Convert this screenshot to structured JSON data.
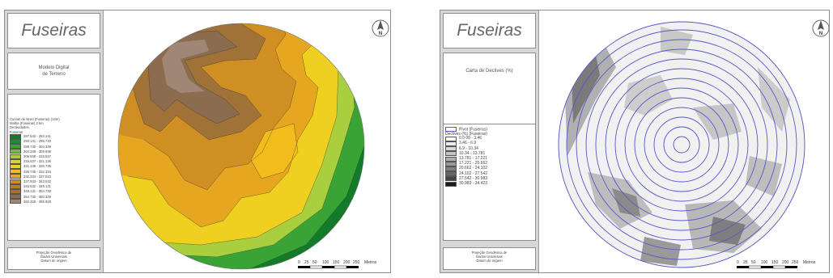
{
  "left_map": {
    "title": "Fuseiras",
    "subtitle": [
      "Modelo Digital",
      "de Terreno"
    ],
    "legend_header": [
      "Curvas de Nivel (Fuseiras) (10m)",
      "Malha (Fuseiras) 2 km",
      "Declividades",
      "Fuseiras"
    ],
    "legend": [
      {
        "label": "287.542 - 293.141",
        "color": "#127a28"
      },
      {
        "label": "293.141 - 298.740",
        "color": "#1e8e2e"
      },
      {
        "label": "298.740 - 304.339",
        "color": "#3aa336"
      },
      {
        "label": "304.339 - 309.938",
        "color": "#6fbb3a"
      },
      {
        "label": "309.938 - 315.537",
        "color": "#a9cf3f"
      },
      {
        "label": "315.537 - 321.136",
        "color": "#dad037"
      },
      {
        "label": "321.136 - 326.735",
        "color": "#efd020"
      },
      {
        "label": "326.735 - 332.334",
        "color": "#f2bd1c"
      },
      {
        "label": "332.334 - 337.933",
        "color": "#e7a61f"
      },
      {
        "label": "337.933 - 343.532",
        "color": "#cf8f22"
      },
      {
        "label": "343.532 - 349.131",
        "color": "#b77d2c"
      },
      {
        "label": "349.131 - 354.730",
        "color": "#a07238"
      },
      {
        "label": "354.730 - 360.329",
        "color": "#8c6c4e"
      },
      {
        "label": "360.329 - 365.928",
        "color": "#a08775"
      }
    ],
    "footer": [
      "Projeção Geodésica de",
      "Dados Universais",
      "Datum de origem"
    ],
    "scale_labels": [
      "0",
      "25",
      "50",
      "100",
      "150",
      "200",
      "250",
      "Metros"
    ],
    "north": "N"
  },
  "right_map": {
    "title": "Fuseiras",
    "subtitle": [
      "Carta de Declives (%)"
    ],
    "legend_header": [
      "Pivot (Fuseiras)",
      "Declives (%) (Fuseiras)"
    ],
    "legend": [
      {
        "label": "0.0 00 - 3.46",
        "color": "#ffffff"
      },
      {
        "label": "3.46 - 6.9",
        "color": "#ececec"
      },
      {
        "label": "6.9 - 10.34",
        "color": "#d8d8d8"
      },
      {
        "label": "10.34 - 13.781",
        "color": "#c3c3c3"
      },
      {
        "label": "13.781 - 17.221",
        "color": "#aeaeae"
      },
      {
        "label": "17.221 - 20.662",
        "color": "#989898"
      },
      {
        "label": "20.662 - 24.102",
        "color": "#7f7f7f"
      },
      {
        "label": "24.102 - 27.542",
        "color": "#666666"
      },
      {
        "label": "27.542 - 30.983",
        "color": "#444444"
      },
      {
        "label": "30.983 - 34.423",
        "color": "#1b1b1b"
      }
    ],
    "pivot_color": "#5a58c8",
    "footer": [
      "Projeção Geodésica de",
      "Dados Universais",
      "Datum de origem"
    ],
    "scale_labels": [
      "0",
      "25",
      "50",
      "100",
      "150",
      "200",
      "250",
      "Metros"
    ],
    "north": "N"
  }
}
